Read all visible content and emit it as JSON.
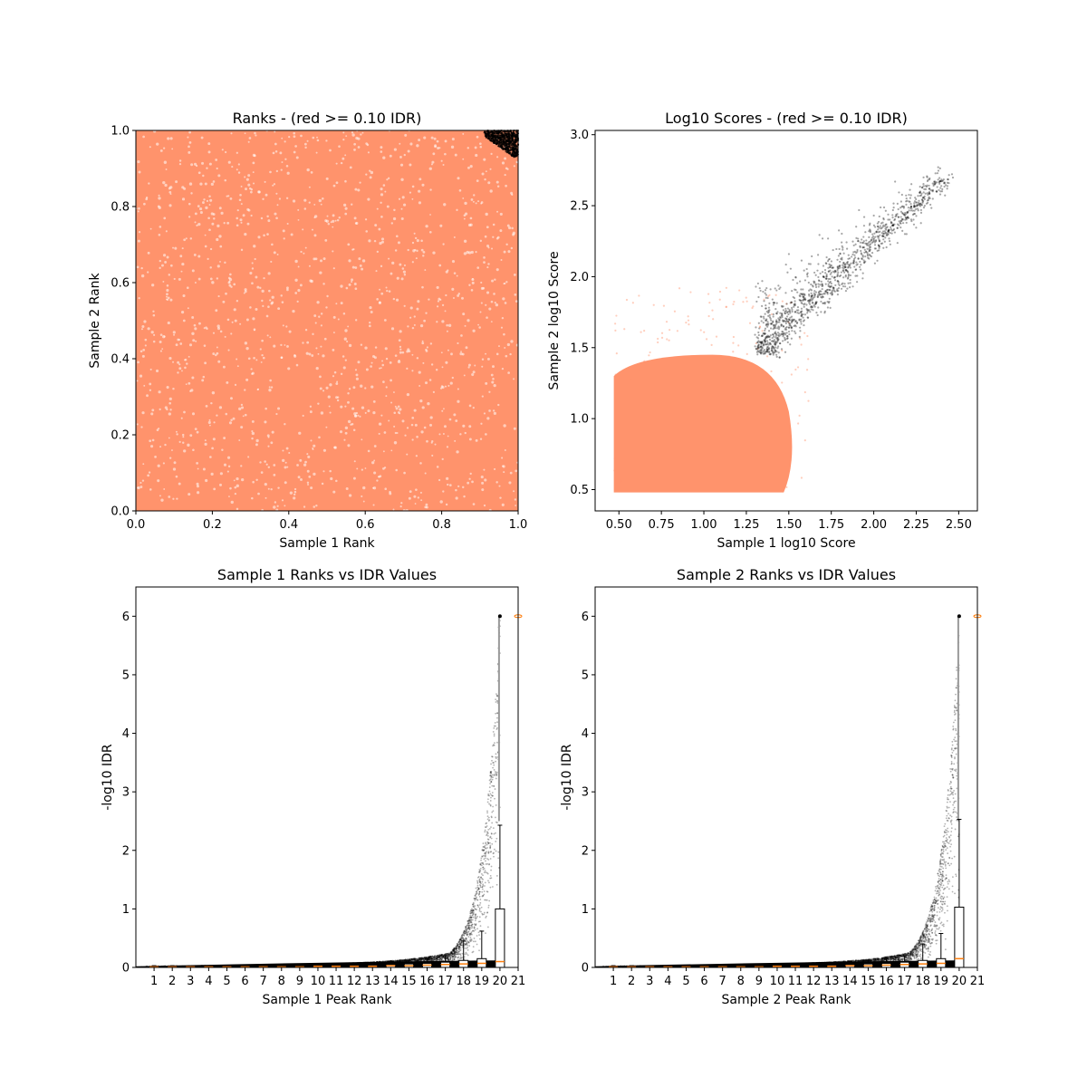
{
  "chart_data": [
    {
      "id": "ranks",
      "type": "scatter",
      "title": "Ranks - (red >= 0.10 IDR)",
      "xlabel": "Sample 1 Rank",
      "ylabel": "Sample 2 Rank",
      "xlim": [
        0,
        1
      ],
      "ylim": [
        0,
        1
      ],
      "xticks": [
        "0.0",
        "0.2",
        "0.4",
        "0.6",
        "0.8",
        "1.0"
      ],
      "yticks": [
        "0.0",
        "0.2",
        "0.4",
        "0.6",
        "0.8",
        "1.0"
      ],
      "grid": false,
      "series": [
        {
          "role": "idr-above-threshold",
          "color": "#ff936c",
          "approx_region": {
            "x": [
              0,
              1
            ],
            "y": [
              0,
              1
            ]
          }
        },
        {
          "role": "idr-below-threshold",
          "color": "#000000",
          "approx_region": {
            "x": [
              0.91,
              1
            ],
            "y": [
              0.93,
              1
            ]
          }
        }
      ]
    },
    {
      "id": "log10-scores",
      "type": "scatter",
      "title": "Log10 Scores - (red >= 0.10 IDR)",
      "xlabel": "Sample 1 log10 Score",
      "ylabel": "Sample 2 log10 Score",
      "xlim": [
        0.36,
        2.61
      ],
      "ylim": [
        0.35,
        3.03
      ],
      "xticks": [
        "0.50",
        "0.75",
        "1.00",
        "1.25",
        "1.50",
        "1.75",
        "2.00",
        "2.25",
        "2.50"
      ],
      "yticks": [
        "0.5",
        "1.0",
        "1.5",
        "2.0",
        "2.5",
        "3.0"
      ],
      "grid": false,
      "series": [
        {
          "role": "idr-above-threshold",
          "color": "#ff936c",
          "approx_region": {
            "x": [
              0.47,
              1.55
            ],
            "y": [
              0.48,
              1.45
            ]
          }
        },
        {
          "role": "idr-below-threshold",
          "color": "#000000",
          "approx_region": {
            "x": [
              1.3,
              2.5
            ],
            "y": [
              1.37,
              2.9
            ]
          }
        }
      ]
    },
    {
      "id": "sample1-ranks-vs-idr",
      "type": "scatter",
      "title": "Sample 1 Ranks vs IDR Values",
      "xlabel": "Sample 1 Peak Rank",
      "ylabel": "-log10 IDR",
      "xlim": [
        0,
        21
      ],
      "ylim": [
        0,
        6.5
      ],
      "xticks": [
        "1",
        "2",
        "3",
        "4",
        "5",
        "6",
        "7",
        "8",
        "9",
        "10",
        "11",
        "12",
        "13",
        "14",
        "15",
        "16",
        "17",
        "18",
        "19",
        "20",
        "21"
      ],
      "yticks": [
        "0",
        "1",
        "2",
        "3",
        "4",
        "5",
        "6"
      ],
      "grid": false,
      "points_color": "#000000",
      "box_color": "#000000",
      "median_color": "#ff7f0e",
      "boxes": [
        {
          "x": 1,
          "q1": 0,
          "median": 0.01,
          "q3": 0.02,
          "whisker_high": 0.03
        },
        {
          "x": 2,
          "q1": 0,
          "median": 0.01,
          "q3": 0.02,
          "whisker_high": 0.03
        },
        {
          "x": 3,
          "q1": 0,
          "median": 0.01,
          "q3": 0.02,
          "whisker_high": 0.03
        },
        {
          "x": 4,
          "q1": 0,
          "median": 0.01,
          "q3": 0.02,
          "whisker_high": 0.03
        },
        {
          "x": 5,
          "q1": 0,
          "median": 0.01,
          "q3": 0.02,
          "whisker_high": 0.03
        },
        {
          "x": 6,
          "q1": 0,
          "median": 0.01,
          "q3": 0.02,
          "whisker_high": 0.03
        },
        {
          "x": 7,
          "q1": 0,
          "median": 0.01,
          "q3": 0.02,
          "whisker_high": 0.04
        },
        {
          "x": 8,
          "q1": 0,
          "median": 0.01,
          "q3": 0.02,
          "whisker_high": 0.04
        },
        {
          "x": 9,
          "q1": 0,
          "median": 0.01,
          "q3": 0.02,
          "whisker_high": 0.05
        },
        {
          "x": 10,
          "q1": 0,
          "median": 0.02,
          "q3": 0.03,
          "whisker_high": 0.05
        },
        {
          "x": 11,
          "q1": 0,
          "median": 0.02,
          "q3": 0.03,
          "whisker_high": 0.06
        },
        {
          "x": 12,
          "q1": 0,
          "median": 0.02,
          "q3": 0.03,
          "whisker_high": 0.07
        },
        {
          "x": 13,
          "q1": 0,
          "median": 0.02,
          "q3": 0.04,
          "whisker_high": 0.08
        },
        {
          "x": 14,
          "q1": 0,
          "median": 0.03,
          "q3": 0.05,
          "whisker_high": 0.1
        },
        {
          "x": 15,
          "q1": 0,
          "median": 0.03,
          "q3": 0.06,
          "whisker_high": 0.12
        },
        {
          "x": 16,
          "q1": 0,
          "median": 0.04,
          "q3": 0.07,
          "whisker_high": 0.15
        },
        {
          "x": 17,
          "q1": 0,
          "median": 0.05,
          "q3": 0.09,
          "whisker_high": 0.2
        },
        {
          "x": 18,
          "q1": 0,
          "median": 0.06,
          "q3": 0.12,
          "whisker_high": 0.45
        },
        {
          "x": 19,
          "q1": 0,
          "median": 0.07,
          "q3": 0.15,
          "whisker_high": 0.62
        },
        {
          "x": 20,
          "q1": 0,
          "median": 0.1,
          "q3": 1.0,
          "whisker_high": 2.43,
          "flier_max": 6.0
        }
      ]
    },
    {
      "id": "sample2-ranks-vs-idr",
      "type": "scatter",
      "title": "Sample 2 Ranks vs IDR Values",
      "xlabel": "Sample 2 Peak Rank",
      "ylabel": "-log10 IDR",
      "xlim": [
        0,
        21
      ],
      "ylim": [
        0,
        6.5
      ],
      "xticks": [
        "1",
        "2",
        "3",
        "4",
        "5",
        "6",
        "7",
        "8",
        "9",
        "10",
        "11",
        "12",
        "13",
        "14",
        "15",
        "16",
        "17",
        "18",
        "19",
        "20",
        "21"
      ],
      "yticks": [
        "0",
        "1",
        "2",
        "3",
        "4",
        "5",
        "6"
      ],
      "grid": false,
      "points_color": "#000000",
      "box_color": "#000000",
      "median_color": "#ff7f0e",
      "boxes": [
        {
          "x": 1,
          "q1": 0,
          "median": 0.01,
          "q3": 0.02,
          "whisker_high": 0.03
        },
        {
          "x": 2,
          "q1": 0,
          "median": 0.01,
          "q3": 0.02,
          "whisker_high": 0.03
        },
        {
          "x": 3,
          "q1": 0,
          "median": 0.01,
          "q3": 0.02,
          "whisker_high": 0.03
        },
        {
          "x": 4,
          "q1": 0,
          "median": 0.01,
          "q3": 0.02,
          "whisker_high": 0.03
        },
        {
          "x": 5,
          "q1": 0,
          "median": 0.01,
          "q3": 0.02,
          "whisker_high": 0.03
        },
        {
          "x": 6,
          "q1": 0,
          "median": 0.01,
          "q3": 0.02,
          "whisker_high": 0.03
        },
        {
          "x": 7,
          "q1": 0,
          "median": 0.01,
          "q3": 0.02,
          "whisker_high": 0.04
        },
        {
          "x": 8,
          "q1": 0,
          "median": 0.01,
          "q3": 0.02,
          "whisker_high": 0.04
        },
        {
          "x": 9,
          "q1": 0,
          "median": 0.01,
          "q3": 0.02,
          "whisker_high": 0.05
        },
        {
          "x": 10,
          "q1": 0,
          "median": 0.02,
          "q3": 0.03,
          "whisker_high": 0.05
        },
        {
          "x": 11,
          "q1": 0,
          "median": 0.02,
          "q3": 0.03,
          "whisker_high": 0.06
        },
        {
          "x": 12,
          "q1": 0,
          "median": 0.02,
          "q3": 0.03,
          "whisker_high": 0.07
        },
        {
          "x": 13,
          "q1": 0,
          "median": 0.02,
          "q3": 0.04,
          "whisker_high": 0.08
        },
        {
          "x": 14,
          "q1": 0,
          "median": 0.03,
          "q3": 0.05,
          "whisker_high": 0.1
        },
        {
          "x": 15,
          "q1": 0,
          "median": 0.03,
          "q3": 0.06,
          "whisker_high": 0.12
        },
        {
          "x": 16,
          "q1": 0,
          "median": 0.04,
          "q3": 0.07,
          "whisker_high": 0.15
        },
        {
          "x": 17,
          "q1": 0,
          "median": 0.05,
          "q3": 0.09,
          "whisker_high": 0.2
        },
        {
          "x": 18,
          "q1": 0,
          "median": 0.06,
          "q3": 0.12,
          "whisker_high": 0.4
        },
        {
          "x": 19,
          "q1": 0,
          "median": 0.07,
          "q3": 0.15,
          "whisker_high": 0.58
        },
        {
          "x": 20,
          "q1": 0,
          "median": 0.15,
          "q3": 1.03,
          "whisker_high": 2.53,
          "flier_max": 6.0
        }
      ]
    }
  ]
}
